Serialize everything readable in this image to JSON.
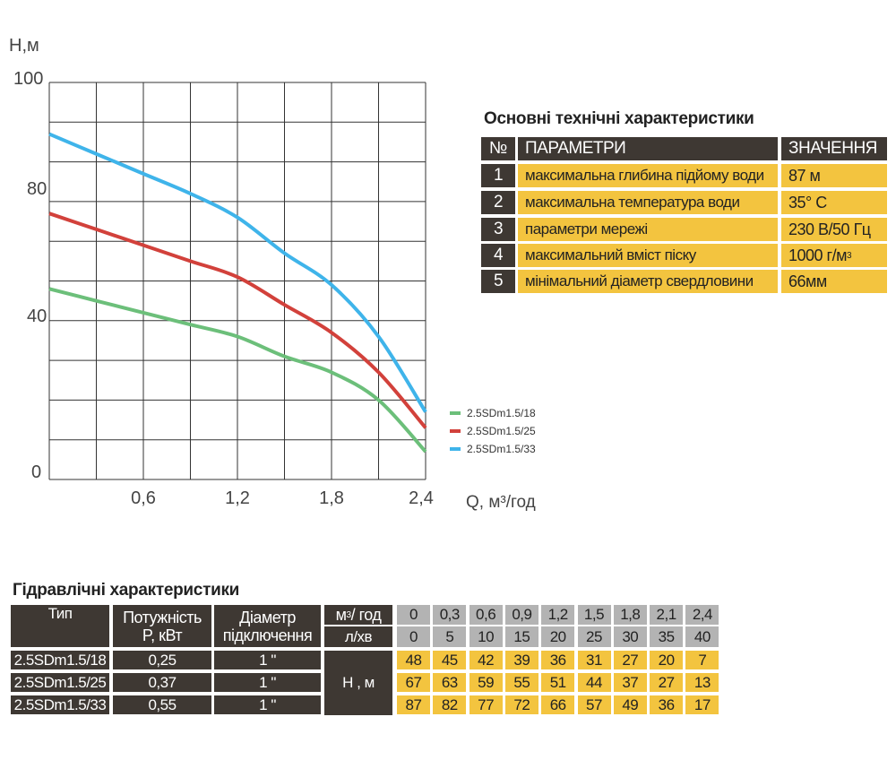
{
  "chart_data": {
    "type": "line",
    "ylabel": "Н,м",
    "xlabel": "Q, м³/год",
    "x": [
      0,
      0.3,
      0.6,
      0.9,
      1.2,
      1.5,
      1.8,
      2.1,
      2.4
    ],
    "xlim": [
      0,
      2.4
    ],
    "ylim": [
      0,
      100
    ],
    "x_tick_labels": [
      "0,6",
      "1,2",
      "1,8",
      "2,4"
    ],
    "y_tick_labels": [
      "100",
      "80",
      "40",
      "0"
    ],
    "grid": true,
    "legend": "right",
    "series": [
      {
        "name": "2.5SDm1.5/18",
        "color": "#6cbf7a",
        "values": [
          48,
          45,
          42,
          39,
          36,
          31,
          27,
          20,
          7
        ]
      },
      {
        "name": "2.5SDm1.5/25",
        "color": "#d2413b",
        "values": [
          67,
          63,
          59,
          55,
          51,
          44,
          37,
          27,
          13
        ]
      },
      {
        "name": "2.5SDm1.5/33",
        "color": "#3fb4ea",
        "values": [
          87,
          82,
          77,
          72,
          66,
          57,
          49,
          36,
          17
        ]
      }
    ]
  },
  "specs": {
    "title": "Основні технічні характеристики",
    "headers": [
      "№",
      "ПАРАМЕТРИ",
      "ЗНАЧЕННЯ"
    ],
    "rows": [
      {
        "n": "1",
        "param": "максимальна глибина підйому води",
        "value": "87 м"
      },
      {
        "n": "2",
        "param": "максимальна температура води",
        "value": "35° C"
      },
      {
        "n": "3",
        "param": "параметри мережі",
        "value": "230 В/50 Гц"
      },
      {
        "n": "4",
        "param": "максимальний вміст піску",
        "value": "1000 г/м³"
      },
      {
        "n": "5",
        "param": "мінімальний діаметр свердловини",
        "value": "66мм"
      }
    ]
  },
  "hydro": {
    "title": "Гідравлічні характеристики",
    "headers": {
      "type": "Тип",
      "power1": "Потужність",
      "power2": "P, кВт",
      "diam1": "Діаметр",
      "diam2": "підключення",
      "unit_m3": "м³/год",
      "unit_l": "л/хв",
      "unit_h": "Н , м"
    },
    "m3h": [
      "0",
      "0,3",
      "0,6",
      "0,9",
      "1,2",
      "1,5",
      "1,8",
      "2,1",
      "2,4"
    ],
    "lmin": [
      "0",
      "5",
      "10",
      "15",
      "20",
      "25",
      "30",
      "35",
      "40"
    ],
    "rows": [
      {
        "type": "2.5SDm1.5/18",
        "power": "0,25",
        "diam": "1 \"",
        "h": [
          "48",
          "45",
          "42",
          "39",
          "36",
          "31",
          "27",
          "20",
          "7"
        ]
      },
      {
        "type": "2.5SDm1.5/25",
        "power": "0,37",
        "diam": "1 \"",
        "h": [
          "67",
          "63",
          "59",
          "55",
          "51",
          "44",
          "37",
          "27",
          "13"
        ]
      },
      {
        "type": "2.5SDm1.5/33",
        "power": "0,55",
        "diam": "1 \"",
        "h": [
          "87",
          "82",
          "77",
          "72",
          "66",
          "57",
          "49",
          "36",
          "17"
        ]
      }
    ]
  }
}
